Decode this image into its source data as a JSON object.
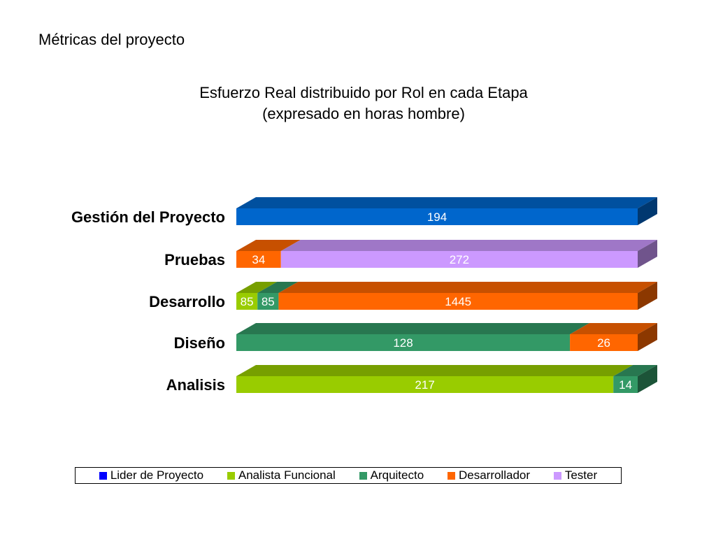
{
  "page": {
    "title": "Métricas del proyecto"
  },
  "chart_data": {
    "type": "bar",
    "orientation": "horizontal",
    "stacked": "100%",
    "style": "3d",
    "title_lines": [
      "Esfuerzo Real distribuido por Rol en cada Etapa",
      "(expresado en horas hombre)"
    ],
    "categories": [
      "Gestión del Proyecto",
      "Pruebas",
      "Desarrollo",
      "Diseño",
      "Analisis"
    ],
    "series": [
      {
        "name": "Lider de Proyecto",
        "color": "#0066cc",
        "values": [
          194,
          0,
          0,
          0,
          0
        ]
      },
      {
        "name": "Analista Funcional",
        "color": "#99cc00",
        "values": [
          0,
          0,
          85,
          0,
          217
        ]
      },
      {
        "name": "Arquitecto",
        "color": "#339966",
        "values": [
          0,
          0,
          85,
          128,
          14
        ]
      },
      {
        "name": "Desarrollador",
        "color": "#ff6600",
        "values": [
          0,
          34,
          1445,
          26,
          0
        ]
      },
      {
        "name": "Tester",
        "color": "#cc99ff",
        "values": [
          0,
          272,
          0,
          0,
          0
        ]
      }
    ],
    "legend": {
      "position": "bottom",
      "items": [
        {
          "label": "Lider de Proyecto",
          "color": "#0000ff"
        },
        {
          "label": "Analista Funcional",
          "color": "#99cc00"
        },
        {
          "label": "Arquitecto",
          "color": "#339966"
        },
        {
          "label": "Desarrollador",
          "color": "#ff6600"
        },
        {
          "label": "Tester",
          "color": "#cc99ff"
        }
      ]
    },
    "grid": false,
    "data_labels": true
  }
}
